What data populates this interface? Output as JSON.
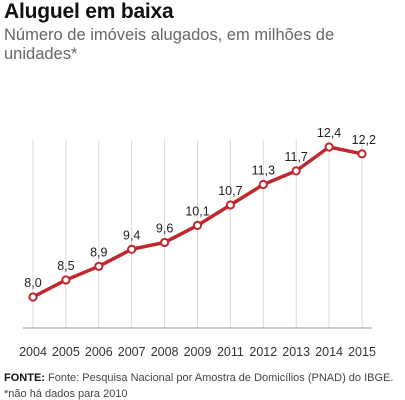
{
  "header": {
    "title": "Aluguel em baixa",
    "subtitle": "Número de imóveis alugados, em milhões de unidades*"
  },
  "footer": {
    "source_label": "FONTE:",
    "source_text": "Fonte: Pesquisa Nacional por Amostra de Domicílios (PNAD) do IBGE.",
    "note": "*não há dados para 2010"
  },
  "colors": {
    "line": "#c1272d",
    "marker_fill": "#ffffff",
    "gridline": "#d9d9d9",
    "axis": "#999999"
  },
  "chart_data": {
    "type": "line",
    "title": "Aluguel em baixa",
    "subtitle": "Número de imóveis alugados, em milhões de unidades*",
    "categories": [
      "2004",
      "2005",
      "2006",
      "2007",
      "2008",
      "2009",
      "2011",
      "2012",
      "2013",
      "2014",
      "2015"
    ],
    "series": [
      {
        "values": [
          8.0,
          8.5,
          8.9,
          9.4,
          9.6,
          10.1,
          10.7,
          11.3,
          11.7,
          12.4,
          12.2
        ],
        "labels": [
          "8,0",
          "8,5",
          "8,9",
          "9,4",
          "9,6",
          "10,1",
          "10,7",
          "11,3",
          "11,7",
          "12,4",
          "12,2"
        ]
      }
    ],
    "xlabel": "",
    "ylabel": "",
    "grid": "vertical",
    "legend": "none"
  }
}
